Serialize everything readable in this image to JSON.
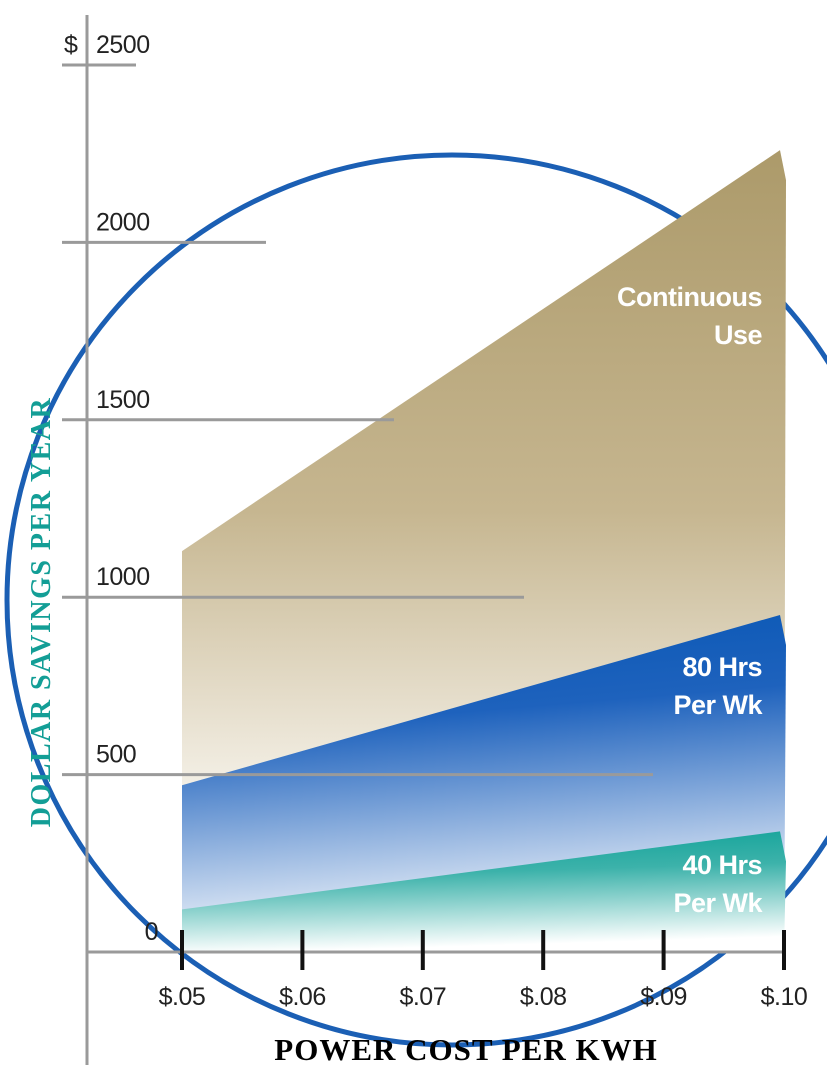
{
  "chart_data": {
    "type": "area",
    "title": "",
    "xlabel": "POWER COST PER KWH",
    "ylabel": "DOLLAR SAVINGS PER YEAR",
    "y_currency_symbol": "$",
    "x": [
      0.05,
      0.1
    ],
    "x_tick_labels": [
      "$.05",
      "$.06",
      "$.07",
      "$.08",
      "$.09",
      "$.10"
    ],
    "y_ticks": [
      0,
      500,
      1000,
      1500,
      2000,
      2500
    ],
    "xlim": [
      0.05,
      0.1
    ],
    "ylim": [
      0,
      2500
    ],
    "grid": false,
    "series": [
      {
        "name": "Continuous Use",
        "label_lines": [
          "Continuous",
          "Use"
        ],
        "values": [
          1130,
          2260
        ],
        "color": "#b09d6e"
      },
      {
        "name": "80 Hrs Per Wk",
        "label_lines": [
          "80 Hrs",
          "Per Wk"
        ],
        "values": [
          470,
          950
        ],
        "color": "#0a5cb6"
      },
      {
        "name": "40 Hrs Per Wk",
        "label_lines": [
          "40 Hrs",
          "Per Wk"
        ],
        "values": [
          120,
          340
        ],
        "color": "#14a49c"
      }
    ],
    "colors": {
      "circle": "#1b5fb4",
      "ylabel": "#139e96",
      "axis": "#9a9a9a"
    }
  }
}
